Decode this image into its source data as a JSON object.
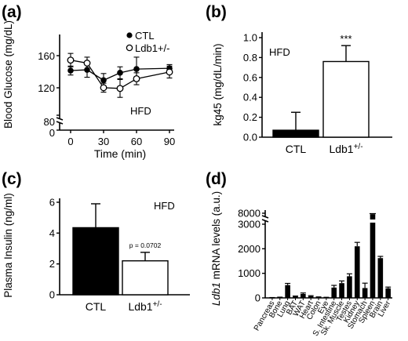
{
  "chart_data": [
    {
      "panel_label": "(a)",
      "type": "line",
      "xlabel": "Time (min)",
      "ylabel": "Blood Glucose (mg/dL)",
      "annotation": "HFD",
      "x": [
        0,
        15,
        30,
        45,
        60,
        90
      ],
      "xticks": [
        "0",
        "30",
        "60",
        "90"
      ],
      "yticks": [
        "0",
        "80",
        "120",
        "160"
      ],
      "ylim": [
        0,
        170
      ],
      "axis_break": "between 0 and 80",
      "legend_position": "top-right",
      "series": [
        {
          "name": "CTL",
          "marker": "filled-circle",
          "values": [
            140,
            141,
            127,
            137,
            142,
            143
          ],
          "errors": [
            6,
            10,
            9,
            8,
            16,
            5
          ]
        },
        {
          "name": "Ldb1+/-",
          "marker": "open-circle",
          "values": [
            154,
            150,
            117,
            116,
            129,
            138
          ],
          "errors": [
            9,
            8,
            6,
            12,
            8,
            8
          ]
        }
      ]
    },
    {
      "panel_label": "(b)",
      "type": "bar",
      "ylabel": "kg45 (mg/dL/min)",
      "annotation": "HFD",
      "categories": [
        "CTL",
        "Ldb1+/-"
      ],
      "values": [
        0.07,
        0.76
      ],
      "errors": [
        0.18,
        0.16
      ],
      "bar_fill": [
        "#000000",
        "#ffffff"
      ],
      "yticks": [
        "0.0",
        "0.2",
        "0.4",
        "0.6",
        "0.8",
        "1.0"
      ],
      "ylim": [
        0,
        1.0
      ],
      "significance": "***"
    },
    {
      "panel_label": "(c)",
      "type": "bar",
      "ylabel": "Plasma Insulin (ng/ml)",
      "annotation": "HFD",
      "categories": [
        "CTL",
        "Ldb1+/-"
      ],
      "values": [
        4.35,
        2.2
      ],
      "errors": [
        1.55,
        0.55
      ],
      "bar_fill": [
        "#000000",
        "#ffffff"
      ],
      "yticks": [
        "0",
        "2",
        "4",
        "6"
      ],
      "ylim": [
        0,
        6
      ],
      "pvalue_label": "p = 0.0702"
    },
    {
      "panel_label": "(d)",
      "type": "bar",
      "ylabel": "Ldb1 mRNA levels (a.u.)",
      "categories": [
        "Pancreas",
        "Bone",
        "Lung",
        "BAT",
        "WAT",
        "Heart",
        "Colon",
        "Eye",
        "S. Intestine",
        "Sk. Muscle",
        "Testes",
        "Kidney",
        "Stomach",
        "Spleen",
        "Brain",
        "Liver"
      ],
      "values": [
        10,
        20,
        520,
        60,
        160,
        70,
        30,
        20,
        420,
        600,
        880,
        2100,
        400,
        7000,
        1620,
        390
      ],
      "errors": [
        5,
        10,
        70,
        15,
        40,
        20,
        10,
        5,
        90,
        90,
        100,
        160,
        200,
        600,
        70,
        50
      ],
      "bar_fill": "#000000",
      "yticks": [
        "0",
        "1000",
        "2000",
        "3000",
        "8000"
      ],
      "ylim": [
        0,
        8000
      ],
      "axis_break": "between 3000 and 8000"
    }
  ]
}
